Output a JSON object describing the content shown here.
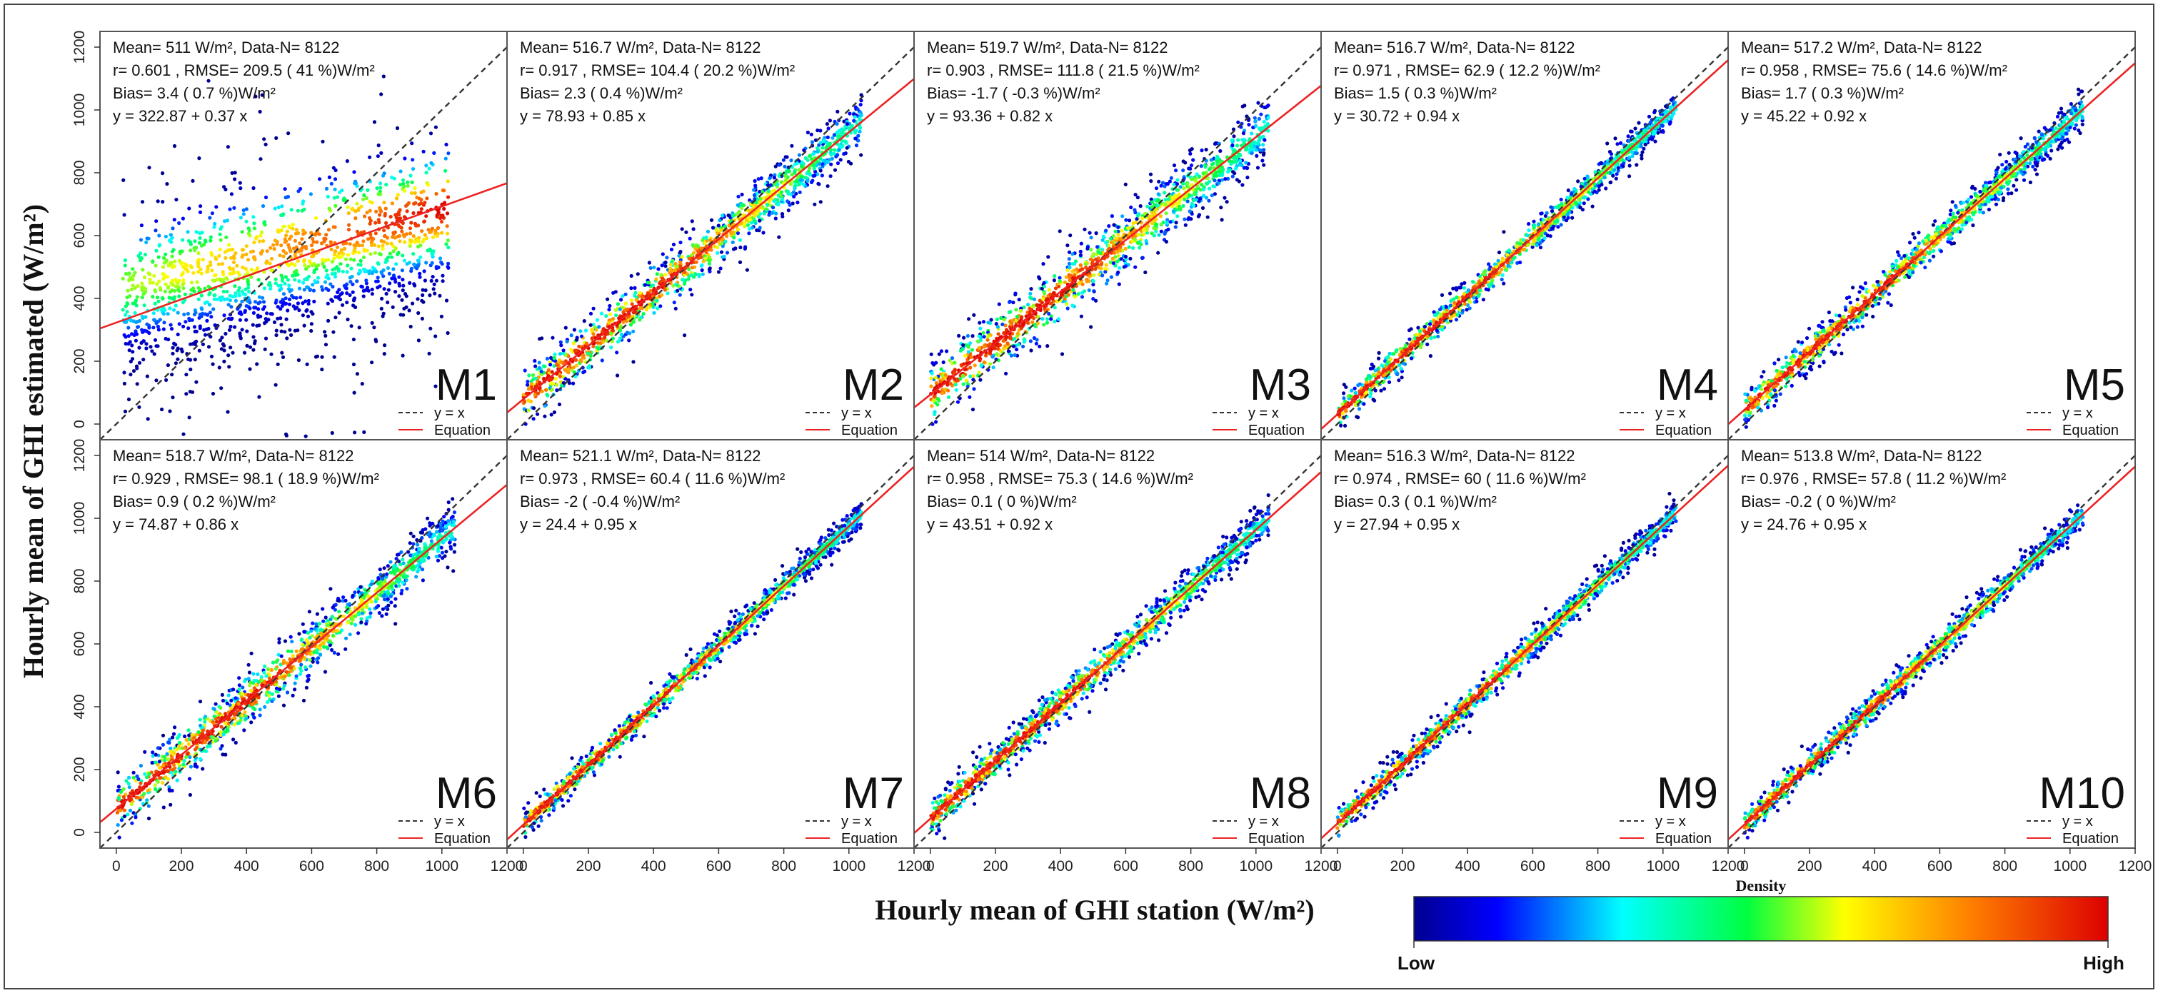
{
  "chart_data": {
    "type": "scatter",
    "x_title": "Hourly mean of GHI station (W/m²)",
    "y_title": "Hourly mean of GHI estimated (W/m²)",
    "xlim": [
      -50,
      1200
    ],
    "ylim": [
      -50,
      1250
    ],
    "x_ticks": [
      "0",
      "200",
      "400",
      "600",
      "800",
      "1000",
      "1200"
    ],
    "y_ticks": [
      "0",
      "200",
      "400",
      "600",
      "800",
      "1000",
      "1200"
    ],
    "legend": {
      "identity": "y = x",
      "fit": "Equation"
    },
    "colorbar": {
      "title": "Density",
      "low": "Low",
      "high": "High"
    },
    "colors": {
      "identity": "#333333",
      "fit": "#ee2222",
      "frame": "#555555"
    },
    "panels": [
      {
        "name": "M1",
        "mean": "Mean= 511 W/m², Data-N= 8122",
        "r_rmse": "r= 0.601 , RMSE= 209.5 ( 41 %)W/m²",
        "bias": "Bias= 3.4 ( 0.7 %)W/m²",
        "equation": "y = 322.87 + 0.37 x",
        "intercept": 322.87,
        "slope": 0.37
      },
      {
        "name": "M2",
        "mean": "Mean= 516.7 W/m², Data-N= 8122",
        "r_rmse": "r= 0.917 , RMSE= 104.4 ( 20.2 %)W/m²",
        "bias": "Bias= 2.3 ( 0.4 %)W/m²",
        "equation": "y = 78.93 + 0.85 x",
        "intercept": 78.93,
        "slope": 0.85
      },
      {
        "name": "M3",
        "mean": "Mean= 519.7 W/m², Data-N= 8122",
        "r_rmse": "r= 0.903 , RMSE= 111.8 ( 21.5 %)W/m²",
        "bias": "Bias= -1.7 ( -0.3 %)W/m²",
        "equation": "y = 93.36 + 0.82 x",
        "intercept": 93.36,
        "slope": 0.82
      },
      {
        "name": "M4",
        "mean": "Mean= 516.7 W/m², Data-N= 8122",
        "r_rmse": "r= 0.971 , RMSE= 62.9 ( 12.2 %)W/m²",
        "bias": "Bias= 1.5 ( 0.3 %)W/m²",
        "equation": "y = 30.72 + 0.94 x",
        "intercept": 30.72,
        "slope": 0.94
      },
      {
        "name": "M5",
        "mean": "Mean= 517.2 W/m², Data-N= 8122",
        "r_rmse": "r= 0.958 , RMSE= 75.6 ( 14.6 %)W/m²",
        "bias": "Bias= 1.7 ( 0.3 %)W/m²",
        "equation": "y = 45.22 + 0.92 x",
        "intercept": 45.22,
        "slope": 0.92
      },
      {
        "name": "M6",
        "mean": "Mean= 518.7 W/m², Data-N= 8122",
        "r_rmse": "r= 0.929 , RMSE= 98.1 ( 18.9 %)W/m²",
        "bias": "Bias= 0.9 ( 0.2 %)W/m²",
        "equation": "y = 74.87 + 0.86 x",
        "intercept": 74.87,
        "slope": 0.86
      },
      {
        "name": "M7",
        "mean": "Mean= 521.1 W/m², Data-N= 8122",
        "r_rmse": "r= 0.973 , RMSE= 60.4 ( 11.6 %)W/m²",
        "bias": "Bias= -2 ( -0.4 %)W/m²",
        "equation": "y = 24.4 + 0.95 x",
        "intercept": 24.4,
        "slope": 0.95
      },
      {
        "name": "M8",
        "mean": "Mean= 514 W/m², Data-N= 8122",
        "r_rmse": "r= 0.958 , RMSE= 75.3 ( 14.6 %)W/m²",
        "bias": "Bias= 0.1 ( 0 %)W/m²",
        "equation": "y = 43.51 + 0.92 x",
        "intercept": 43.51,
        "slope": 0.92
      },
      {
        "name": "M9",
        "mean": "Mean= 516.3 W/m², Data-N= 8122",
        "r_rmse": "r= 0.974 , RMSE= 60 ( 11.6 %)W/m²",
        "bias": "Bias= 0.3 ( 0.1 %)W/m²",
        "equation": "y = 27.94 + 0.95 x",
        "intercept": 27.94,
        "slope": 0.95
      },
      {
        "name": "M10",
        "mean": "Mean= 513.8 W/m², Data-N= 8122",
        "r_rmse": "r= 0.976 , RMSE= 57.8 ( 11.2 %)W/m²",
        "bias": "Bias= -0.2 ( 0 %)W/m²",
        "equation": "y = 24.76 + 0.95 x",
        "intercept": 24.76,
        "slope": 0.95
      }
    ]
  }
}
